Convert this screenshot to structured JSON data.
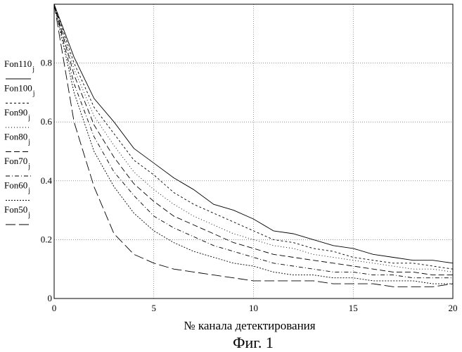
{
  "chart_data": {
    "type": "line",
    "xlabel": "№ канала детектирования",
    "caption": "Фиг. 1",
    "xlim": [
      0,
      20
    ],
    "ylim": [
      0,
      1
    ],
    "xticks": [
      0,
      5,
      10,
      15,
      20
    ],
    "yticks": [
      0,
      0.2,
      0.4,
      0.6,
      0.8
    ],
    "grid": true,
    "legend_placement": "left",
    "x": [
      0,
      1,
      2,
      3,
      4,
      5,
      6,
      7,
      8,
      9,
      10,
      11,
      12,
      13,
      14,
      15,
      16,
      17,
      18,
      19,
      20
    ],
    "series": [
      {
        "name": "Fon110",
        "subscript": "j",
        "dash": "",
        "values": [
          1.0,
          0.82,
          0.68,
          0.6,
          0.51,
          0.46,
          0.41,
          0.37,
          0.32,
          0.3,
          0.27,
          0.23,
          0.22,
          0.2,
          0.18,
          0.17,
          0.15,
          0.14,
          0.13,
          0.13,
          0.12
        ]
      },
      {
        "name": "Fon100",
        "subscript": "j",
        "dash": "3,3",
        "values": [
          1.0,
          0.8,
          0.65,
          0.56,
          0.47,
          0.42,
          0.36,
          0.32,
          0.29,
          0.26,
          0.23,
          0.2,
          0.19,
          0.17,
          0.16,
          0.14,
          0.13,
          0.12,
          0.12,
          0.11,
          0.1
        ]
      },
      {
        "name": "Fon90",
        "subscript": "j",
        "dash": "1,3",
        "values": [
          1.0,
          0.78,
          0.62,
          0.52,
          0.43,
          0.37,
          0.32,
          0.28,
          0.25,
          0.22,
          0.2,
          0.18,
          0.17,
          0.15,
          0.14,
          0.13,
          0.12,
          0.11,
          0.1,
          0.1,
          0.09
        ]
      },
      {
        "name": "Fon80",
        "subscript": "j",
        "dash": "8,4",
        "values": [
          1.0,
          0.76,
          0.59,
          0.48,
          0.39,
          0.33,
          0.28,
          0.25,
          0.22,
          0.19,
          0.17,
          0.15,
          0.14,
          0.13,
          0.12,
          0.11,
          0.1,
          0.09,
          0.09,
          0.08,
          0.08
        ]
      },
      {
        "name": "Fon70",
        "subscript": "j",
        "dash": "6,3,1,3",
        "values": [
          1.0,
          0.73,
          0.55,
          0.43,
          0.35,
          0.28,
          0.24,
          0.21,
          0.18,
          0.16,
          0.14,
          0.12,
          0.11,
          0.1,
          0.09,
          0.09,
          0.08,
          0.08,
          0.07,
          0.07,
          0.07
        ]
      },
      {
        "name": "Fon60",
        "subscript": "j",
        "dash": "2,2",
        "values": [
          1.0,
          0.7,
          0.5,
          0.38,
          0.29,
          0.23,
          0.19,
          0.16,
          0.14,
          0.12,
          0.11,
          0.09,
          0.08,
          0.08,
          0.07,
          0.07,
          0.06,
          0.06,
          0.06,
          0.05,
          0.05
        ]
      },
      {
        "name": "Fon50",
        "subscript": "j",
        "dash": "14,5",
        "values": [
          1.0,
          0.6,
          0.38,
          0.22,
          0.15,
          0.12,
          0.1,
          0.09,
          0.08,
          0.07,
          0.06,
          0.06,
          0.06,
          0.06,
          0.05,
          0.05,
          0.05,
          0.04,
          0.04,
          0.04,
          0.05
        ]
      }
    ]
  }
}
